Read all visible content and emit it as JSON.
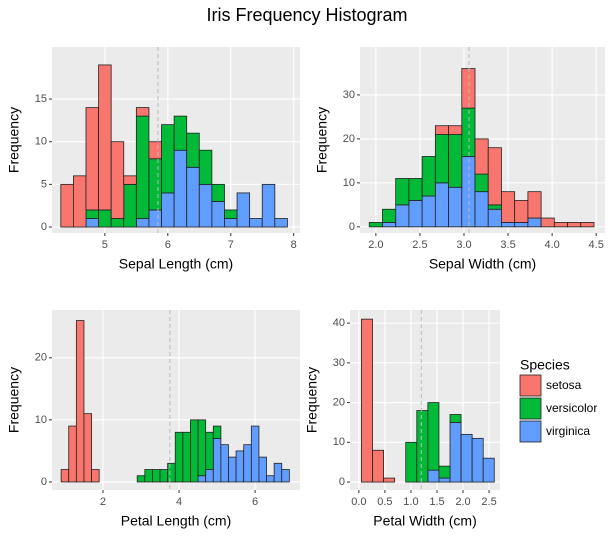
{
  "title": "Iris Frequency Histogram",
  "legend": {
    "title": "Species"
  },
  "chart_data": [
    {
      "type": "histogram",
      "xlabel": "Sepal Length (cm)",
      "ylabel": "Frequency",
      "bins": [
        4.3,
        4.5,
        4.7,
        4.9,
        5.1,
        5.3,
        5.5,
        5.7,
        5.9,
        6.1,
        6.3,
        6.5,
        6.7,
        6.9,
        7.1,
        7.3,
        7.5,
        7.7,
        7.9
      ],
      "series": [
        {
          "name": "setosa",
          "color": "#F8766D",
          "values": [
            5,
            6,
            12,
            17,
            9,
            1,
            1,
            2,
            0,
            0,
            0,
            0,
            0,
            0,
            0,
            0,
            0,
            0
          ]
        },
        {
          "name": "versicolor",
          "color": "#00BA38",
          "values": [
            0,
            0,
            1,
            2,
            1,
            5,
            12,
            6,
            8,
            4,
            4,
            4,
            2,
            1,
            0,
            0,
            0,
            0
          ]
        },
        {
          "name": "virginica",
          "color": "#619CFF",
          "values": [
            0,
            0,
            1,
            0,
            0,
            0,
            1,
            2,
            4,
            9,
            7,
            5,
            3,
            1,
            4,
            1,
            5,
            1
          ]
        }
      ],
      "xlim": [
        4.16,
        8.1
      ],
      "xticks": [
        5,
        6,
        7,
        8
      ],
      "ylim": [
        -0.7,
        21.1
      ],
      "yticks": [
        0,
        5,
        10,
        15
      ],
      "vline": 5.843,
      "grid": true
    },
    {
      "type": "histogram",
      "xlabel": "Sepal Width (cm)",
      "ylabel": "Frequency",
      "bins": [
        1.925,
        2.075,
        2.225,
        2.375,
        2.525,
        2.675,
        2.825,
        2.975,
        3.125,
        3.275,
        3.425,
        3.575,
        3.725,
        3.875,
        4.025,
        4.175,
        4.325,
        4.475
      ],
      "series": [
        {
          "name": "setosa",
          "color": "#F8766D",
          "values": [
            0,
            0,
            0,
            0,
            0,
            2,
            2,
            9,
            8,
            13,
            7,
            5,
            6,
            2,
            1,
            1,
            1
          ]
        },
        {
          "name": "versicolor",
          "color": "#00BA38",
          "values": [
            1,
            3,
            6,
            5,
            9,
            11,
            12,
            11,
            4,
            1,
            0,
            0,
            0,
            0,
            0,
            0,
            0
          ]
        },
        {
          "name": "virginica",
          "color": "#619CFF",
          "values": [
            0,
            1,
            5,
            6,
            7,
            10,
            9,
            16,
            8,
            4,
            1,
            1,
            2,
            0,
            0,
            0,
            0
          ]
        }
      ],
      "xlim": [
        1.82,
        4.6
      ],
      "xticks": [
        {
          "value": 2,
          "label": "2.0"
        },
        2.5,
        {
          "value": 3,
          "label": "3.0"
        },
        3.5,
        {
          "value": 4,
          "label": "4.0"
        },
        4.5
      ],
      "ylim": [
        -1.4,
        40.9
      ],
      "yticks": [
        0,
        10,
        20,
        30
      ],
      "vline": 3.057,
      "grid": true
    },
    {
      "type": "histogram",
      "xlabel": "Petal Length (cm)",
      "ylabel": "Frequency",
      "bins": [
        0.9,
        1.1,
        1.3,
        1.5,
        1.7,
        1.9,
        2.1,
        2.3,
        2.5,
        2.7,
        2.9,
        3.1,
        3.3,
        3.5,
        3.7,
        3.9,
        4.1,
        4.3,
        4.5,
        4.7,
        4.9,
        5.1,
        5.3,
        5.5,
        5.7,
        5.9,
        6.1,
        6.3,
        6.5,
        6.7,
        6.9
      ],
      "series": [
        {
          "name": "setosa",
          "color": "#F8766D",
          "values": [
            2,
            9,
            26,
            11,
            2,
            0,
            0,
            0,
            0,
            0,
            0,
            0,
            0,
            0,
            0,
            0,
            0,
            0,
            0,
            0,
            0,
            0,
            0,
            0,
            0,
            0,
            0,
            0,
            0,
            0
          ]
        },
        {
          "name": "versicolor",
          "color": "#00BA38",
          "values": [
            0,
            0,
            0,
            0,
            0,
            0,
            0,
            0,
            0,
            0,
            1,
            2,
            2,
            2,
            3,
            8,
            8,
            10,
            9,
            6,
            2,
            0,
            0,
            0,
            0,
            0,
            0,
            0,
            0,
            0
          ]
        },
        {
          "name": "virginica",
          "color": "#619CFF",
          "values": [
            0,
            0,
            0,
            0,
            0,
            0,
            0,
            0,
            0,
            0,
            0,
            0,
            0,
            0,
            0,
            0,
            0,
            0,
            1,
            2,
            7,
            6,
            4,
            5,
            6,
            9,
            4,
            1,
            3,
            2
          ]
        }
      ],
      "xlim": [
        0.66,
        7.18
      ],
      "xticks": [
        2,
        4,
        6
      ],
      "ylim": [
        -1.3,
        27.7
      ],
      "yticks": [
        0,
        10,
        20
      ],
      "vline": 3.758,
      "grid": true
    },
    {
      "type": "histogram",
      "xlabel": "Petal Width (cm)",
      "ylabel": "Frequency",
      "bins": [
        0.05,
        0.2625,
        0.475,
        0.6875,
        0.9,
        1.1125,
        1.325,
        1.5375,
        1.75,
        1.9625,
        2.175,
        2.3875,
        2.6
      ],
      "series": [
        {
          "name": "setosa",
          "color": "#F8766D",
          "values": [
            41,
            8,
            1,
            0,
            0,
            0,
            0,
            0,
            0,
            0,
            0,
            0
          ]
        },
        {
          "name": "versicolor",
          "color": "#00BA38",
          "values": [
            0,
            0,
            0,
            0,
            10,
            18,
            17,
            3,
            2,
            0,
            0,
            0
          ]
        },
        {
          "name": "virginica",
          "color": "#619CFF",
          "values": [
            0,
            0,
            0,
            0,
            0,
            0,
            3,
            1,
            15,
            12,
            11,
            6
          ]
        }
      ],
      "xlim": [
        -0.17,
        2.71
      ],
      "xticks": [
        {
          "value": 0,
          "label": "0.0"
        },
        0.5,
        {
          "value": 1,
          "label": "1.0"
        },
        1.5,
        {
          "value": 2,
          "label": "2.0"
        },
        2.5
      ],
      "ylim": [
        -2.0,
        43.3
      ],
      "yticks": [
        0,
        10,
        20,
        30,
        40
      ],
      "vline": 1.199,
      "grid": true
    }
  ]
}
